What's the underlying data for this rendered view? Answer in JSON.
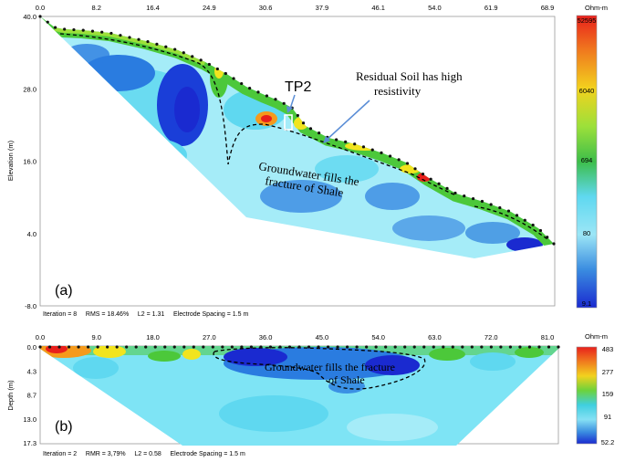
{
  "panel_a": {
    "top_ticks": [
      "0.0",
      "8.2",
      "16.4",
      "24.9",
      "30.6",
      "37.9",
      "46.1",
      "54.0",
      "61.9",
      "68.9"
    ],
    "y_ticks": [
      "40.0",
      "28.0",
      "16.0",
      "4.0",
      "-8.0"
    ],
    "y_axis_label": "Elevation (m)",
    "footer": "Iteration = 8     RMS = 18.46%     L2 = 1.31     Electrode Spacing = 1.5 m",
    "panel_label": "(a)",
    "annotation_tp2": "TP2",
    "annotation_residual_line1": "Residual Soil has high",
    "annotation_residual_line2": "resistivity",
    "annotation_groundwater_line1": "Groundwater fills the",
    "annotation_groundwater_line2": "fracture of Shale",
    "colorbar_unit": "Ohm-m",
    "colorbar_labels": [
      "52595",
      "6040",
      "694",
      "80",
      "9.1"
    ]
  },
  "panel_b": {
    "top_ticks": [
      "0.0",
      "9.0",
      "18.0",
      "27.0",
      "36.0",
      "45.0",
      "54.0",
      "63.0",
      "72.0",
      "81.0"
    ],
    "y_ticks": [
      "0.0",
      "4.3",
      "8.7",
      "13.0",
      "17.3"
    ],
    "y_axis_label": "Depth (m)",
    "footer": "Iteration = 2     RMR = 3,79%     L2 = 0.58     Electrode Spacing = 1.5 m",
    "panel_label": "(b)",
    "annotation_groundwater_line1": "Groundwater fills the fracture",
    "annotation_groundwater_line2": "of Shale",
    "colorbar_unit": "Ohm-m",
    "colorbar_labels": [
      "483",
      "277",
      "159",
      "91",
      "52.2"
    ]
  },
  "colors": {
    "high": "#e8201c",
    "orange": "#f59a1c",
    "yellow": "#f2e41e",
    "green": "#4cc83a",
    "cyan": "#5fd8f0",
    "light_cyan": "#a5ecf8",
    "blue": "#2a7ce0",
    "dark_blue": "#1a2ad0"
  }
}
